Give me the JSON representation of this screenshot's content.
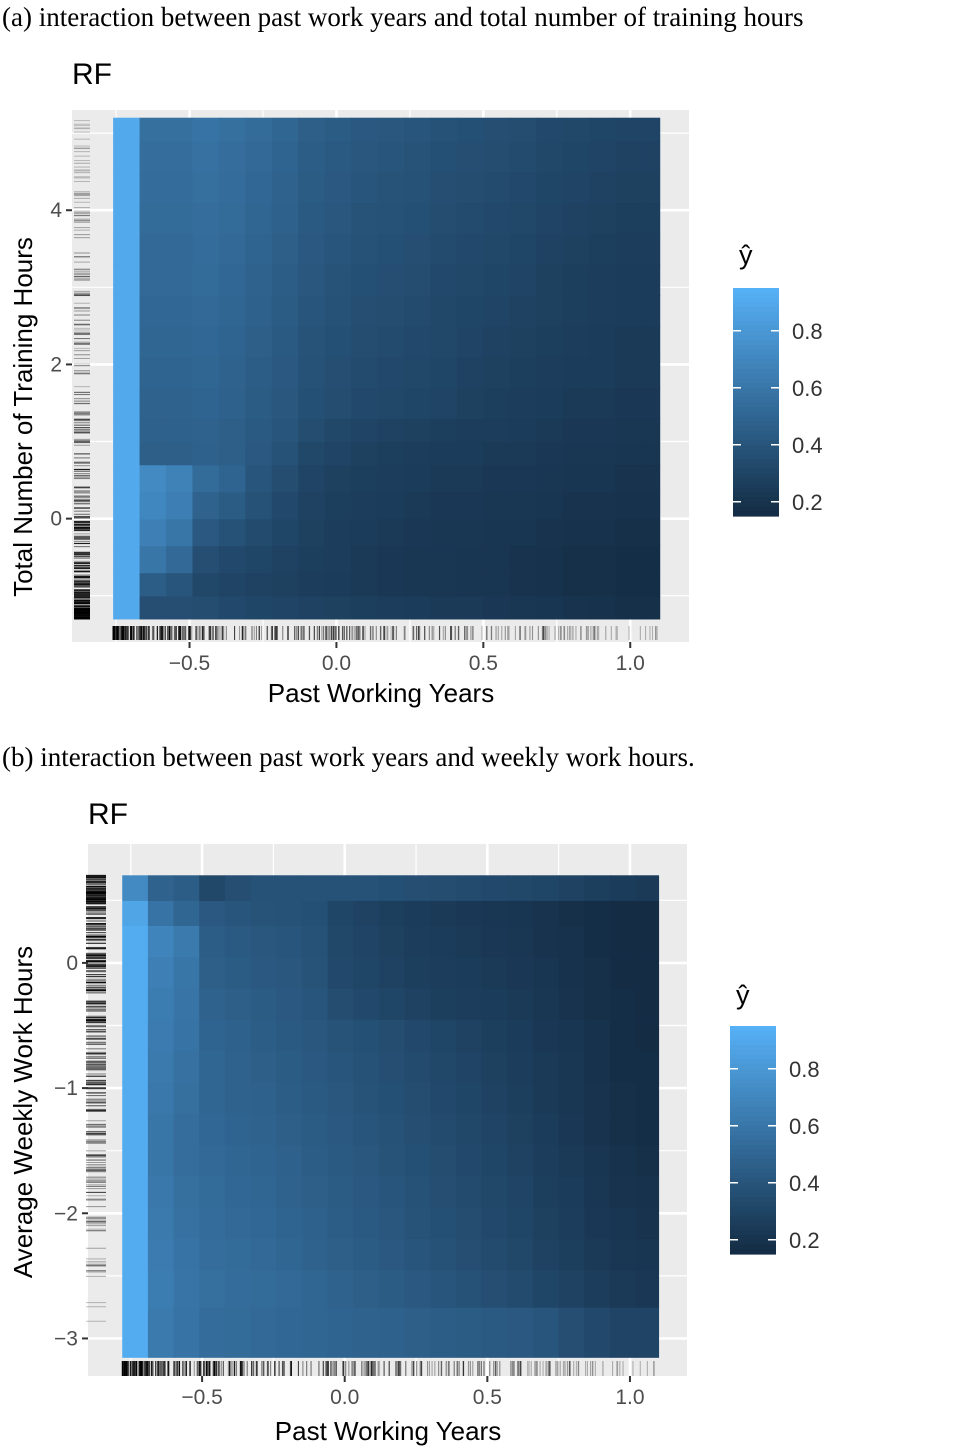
{
  "captions": {
    "a": "(a) interaction between past work years and total number of training hours",
    "b": "(b) interaction between past work years and weekly work hours."
  },
  "colors": {
    "low": "#132B43",
    "high": "#56B1F7",
    "panel": "#EBEBEB",
    "grid": "#FFFFFF"
  },
  "chart_data": [
    {
      "type": "heatmap",
      "title": "RF",
      "xlabel": "Past Working Years",
      "ylabel": "Total Number of Training Hours",
      "legend_title": "ŷ",
      "legend_position": "right",
      "legend_ticks": [
        0.2,
        0.4,
        0.6,
        0.8
      ],
      "zlim": [
        0.15,
        0.95
      ],
      "xlim": [
        -0.9,
        1.2
      ],
      "ylim": [
        -1.6,
        5.3
      ],
      "xticks": [
        -0.5,
        0.0,
        0.5,
        1.0
      ],
      "xtick_labels": [
        "−0.5",
        "0.0",
        "0.5",
        "1.0"
      ],
      "yticks": [
        0,
        2,
        4
      ],
      "ytick_labels": [
        "0",
        "2",
        "4"
      ],
      "grid": true,
      "x_edges": [
        -0.76,
        -0.67,
        -0.58,
        -0.49,
        -0.4,
        -0.31,
        -0.22,
        -0.13,
        -0.04,
        0.05,
        0.14,
        0.23,
        0.32,
        0.41,
        0.5,
        0.59,
        0.68,
        0.77,
        0.86,
        0.95,
        1.04,
        1.1
      ],
      "y_edges": [
        -1.3,
        -1.0,
        -0.7,
        -0.35,
        0.0,
        0.35,
        0.7,
        1.0,
        1.3,
        1.7,
        2.1,
        2.5,
        2.9,
        3.3,
        3.7,
        4.1,
        4.5,
        4.9,
        5.2
      ],
      "rows": [
        [
          0.9,
          0.36,
          0.36,
          0.35,
          0.33,
          0.31,
          0.3,
          0.29,
          0.28,
          0.27,
          0.26,
          0.25,
          0.24,
          0.24,
          0.23,
          0.22,
          0.21,
          0.2,
          0.19,
          0.18,
          0.18
        ],
        [
          0.9,
          0.45,
          0.4,
          0.32,
          0.3,
          0.29,
          0.28,
          0.26,
          0.25,
          0.24,
          0.23,
          0.22,
          0.22,
          0.21,
          0.21,
          0.2,
          0.19,
          0.18,
          0.18,
          0.17,
          0.17
        ],
        [
          0.9,
          0.6,
          0.52,
          0.36,
          0.33,
          0.31,
          0.29,
          0.27,
          0.26,
          0.24,
          0.23,
          0.22,
          0.22,
          0.21,
          0.21,
          0.2,
          0.19,
          0.18,
          0.18,
          0.17,
          0.17
        ],
        [
          0.9,
          0.66,
          0.6,
          0.42,
          0.38,
          0.34,
          0.31,
          0.28,
          0.26,
          0.25,
          0.24,
          0.23,
          0.22,
          0.22,
          0.21,
          0.21,
          0.2,
          0.19,
          0.19,
          0.18,
          0.18
        ],
        [
          0.9,
          0.7,
          0.65,
          0.48,
          0.44,
          0.38,
          0.33,
          0.29,
          0.27,
          0.26,
          0.25,
          0.24,
          0.23,
          0.23,
          0.22,
          0.22,
          0.21,
          0.2,
          0.2,
          0.19,
          0.19
        ],
        [
          0.9,
          0.72,
          0.67,
          0.53,
          0.49,
          0.4,
          0.35,
          0.3,
          0.28,
          0.27,
          0.26,
          0.25,
          0.24,
          0.24,
          0.23,
          0.23,
          0.22,
          0.21,
          0.21,
          0.2,
          0.2
        ],
        [
          0.9,
          0.46,
          0.46,
          0.47,
          0.46,
          0.42,
          0.38,
          0.32,
          0.3,
          0.28,
          0.27,
          0.26,
          0.25,
          0.25,
          0.24,
          0.24,
          0.23,
          0.22,
          0.22,
          0.21,
          0.21
        ],
        [
          0.9,
          0.47,
          0.47,
          0.48,
          0.46,
          0.43,
          0.4,
          0.35,
          0.32,
          0.3,
          0.29,
          0.28,
          0.27,
          0.26,
          0.26,
          0.25,
          0.24,
          0.23,
          0.23,
          0.22,
          0.22
        ],
        [
          0.9,
          0.48,
          0.48,
          0.49,
          0.47,
          0.44,
          0.41,
          0.37,
          0.35,
          0.33,
          0.32,
          0.31,
          0.3,
          0.28,
          0.27,
          0.26,
          0.25,
          0.24,
          0.24,
          0.23,
          0.23
        ],
        [
          0.9,
          0.49,
          0.49,
          0.5,
          0.48,
          0.45,
          0.42,
          0.38,
          0.36,
          0.34,
          0.33,
          0.32,
          0.31,
          0.29,
          0.28,
          0.27,
          0.26,
          0.25,
          0.25,
          0.24,
          0.24
        ],
        [
          0.9,
          0.5,
          0.5,
          0.51,
          0.49,
          0.46,
          0.43,
          0.39,
          0.37,
          0.35,
          0.34,
          0.33,
          0.32,
          0.3,
          0.29,
          0.28,
          0.27,
          0.26,
          0.25,
          0.24,
          0.24
        ],
        [
          0.9,
          0.51,
          0.51,
          0.52,
          0.5,
          0.47,
          0.44,
          0.4,
          0.38,
          0.36,
          0.35,
          0.34,
          0.32,
          0.31,
          0.3,
          0.29,
          0.28,
          0.27,
          0.26,
          0.25,
          0.25
        ],
        [
          0.9,
          0.52,
          0.52,
          0.53,
          0.51,
          0.48,
          0.45,
          0.41,
          0.39,
          0.37,
          0.36,
          0.35,
          0.33,
          0.32,
          0.31,
          0.3,
          0.28,
          0.27,
          0.26,
          0.25,
          0.25
        ],
        [
          0.9,
          0.52,
          0.52,
          0.54,
          0.52,
          0.49,
          0.46,
          0.42,
          0.4,
          0.38,
          0.37,
          0.36,
          0.34,
          0.33,
          0.32,
          0.31,
          0.29,
          0.28,
          0.27,
          0.26,
          0.26
        ],
        [
          0.9,
          0.53,
          0.53,
          0.55,
          0.53,
          0.5,
          0.47,
          0.43,
          0.41,
          0.39,
          0.38,
          0.37,
          0.35,
          0.34,
          0.33,
          0.32,
          0.3,
          0.29,
          0.28,
          0.27,
          0.27
        ],
        [
          0.9,
          0.54,
          0.54,
          0.56,
          0.54,
          0.51,
          0.48,
          0.44,
          0.42,
          0.4,
          0.39,
          0.38,
          0.36,
          0.35,
          0.34,
          0.33,
          0.31,
          0.3,
          0.29,
          0.28,
          0.28
        ],
        [
          0.9,
          0.55,
          0.55,
          0.57,
          0.55,
          0.52,
          0.49,
          0.45,
          0.43,
          0.41,
          0.4,
          0.39,
          0.37,
          0.36,
          0.35,
          0.34,
          0.32,
          0.31,
          0.3,
          0.29,
          0.29
        ],
        [
          0.9,
          0.56,
          0.56,
          0.58,
          0.56,
          0.53,
          0.5,
          0.46,
          0.44,
          0.42,
          0.41,
          0.4,
          0.38,
          0.37,
          0.36,
          0.35,
          0.33,
          0.32,
          0.31,
          0.3,
          0.3
        ]
      ]
    },
    {
      "type": "heatmap",
      "title": "RF",
      "xlabel": "Past Working Years",
      "ylabel": "Average Weekly Work Hours",
      "legend_title": "ŷ",
      "legend_position": "right",
      "legend_ticks": [
        0.2,
        0.4,
        0.6,
        0.8
      ],
      "zlim": [
        0.15,
        0.95
      ],
      "xlim": [
        -0.9,
        1.2
      ],
      "ylim": [
        -3.3,
        0.95
      ],
      "xticks": [
        -0.5,
        0.0,
        0.5,
        1.0
      ],
      "xtick_labels": [
        "−0.5",
        "0.0",
        "0.5",
        "1.0"
      ],
      "yticks": [
        -3,
        -2,
        -1,
        0
      ],
      "ytick_labels": [
        "−3",
        "−2",
        "−1",
        "0"
      ],
      "grid": true,
      "x_edges": [
        -0.78,
        -0.69,
        -0.6,
        -0.51,
        -0.42,
        -0.33,
        -0.24,
        -0.15,
        -0.06,
        0.03,
        0.12,
        0.21,
        0.3,
        0.39,
        0.48,
        0.57,
        0.66,
        0.75,
        0.84,
        0.93,
        1.02,
        1.1
      ],
      "y_edges": [
        -3.15,
        -2.75,
        -2.45,
        -2.2,
        -1.95,
        -1.7,
        -1.45,
        -1.2,
        -0.95,
        -0.7,
        -0.45,
        -0.2,
        0.05,
        0.3,
        0.5,
        0.7
      ],
      "rows": [
        [
          0.92,
          0.62,
          0.58,
          0.54,
          0.53,
          0.52,
          0.51,
          0.5,
          0.49,
          0.48,
          0.47,
          0.46,
          0.45,
          0.44,
          0.43,
          0.42,
          0.4,
          0.36,
          0.33,
          0.3,
          0.3
        ],
        [
          0.92,
          0.64,
          0.59,
          0.56,
          0.54,
          0.53,
          0.52,
          0.5,
          0.48,
          0.46,
          0.44,
          0.42,
          0.4,
          0.38,
          0.36,
          0.34,
          0.31,
          0.29,
          0.26,
          0.24,
          0.23
        ],
        [
          0.92,
          0.63,
          0.58,
          0.55,
          0.53,
          0.52,
          0.5,
          0.48,
          0.46,
          0.44,
          0.42,
          0.4,
          0.38,
          0.36,
          0.34,
          0.32,
          0.29,
          0.27,
          0.24,
          0.22,
          0.21
        ],
        [
          0.92,
          0.62,
          0.57,
          0.54,
          0.52,
          0.51,
          0.49,
          0.47,
          0.45,
          0.43,
          0.41,
          0.39,
          0.37,
          0.35,
          0.33,
          0.31,
          0.28,
          0.26,
          0.23,
          0.21,
          0.2
        ],
        [
          0.92,
          0.61,
          0.56,
          0.53,
          0.51,
          0.5,
          0.48,
          0.46,
          0.44,
          0.42,
          0.4,
          0.38,
          0.36,
          0.34,
          0.32,
          0.3,
          0.27,
          0.25,
          0.22,
          0.2,
          0.19
        ],
        [
          0.92,
          0.6,
          0.55,
          0.52,
          0.5,
          0.49,
          0.47,
          0.45,
          0.43,
          0.41,
          0.39,
          0.37,
          0.35,
          0.33,
          0.31,
          0.29,
          0.26,
          0.24,
          0.21,
          0.19,
          0.18
        ],
        [
          0.92,
          0.6,
          0.55,
          0.51,
          0.49,
          0.48,
          0.46,
          0.44,
          0.42,
          0.4,
          0.38,
          0.36,
          0.34,
          0.32,
          0.3,
          0.28,
          0.25,
          0.23,
          0.2,
          0.18,
          0.17
        ],
        [
          0.92,
          0.61,
          0.56,
          0.5,
          0.48,
          0.47,
          0.45,
          0.43,
          0.41,
          0.39,
          0.37,
          0.35,
          0.33,
          0.31,
          0.29,
          0.27,
          0.24,
          0.22,
          0.2,
          0.18,
          0.17
        ],
        [
          0.92,
          0.62,
          0.57,
          0.5,
          0.48,
          0.46,
          0.44,
          0.42,
          0.4,
          0.38,
          0.36,
          0.34,
          0.32,
          0.3,
          0.28,
          0.26,
          0.24,
          0.22,
          0.19,
          0.17,
          0.17
        ],
        [
          0.92,
          0.63,
          0.58,
          0.49,
          0.47,
          0.45,
          0.43,
          0.41,
          0.39,
          0.37,
          0.35,
          0.33,
          0.31,
          0.29,
          0.27,
          0.25,
          0.23,
          0.21,
          0.19,
          0.17,
          0.16
        ],
        [
          0.92,
          0.64,
          0.59,
          0.48,
          0.46,
          0.44,
          0.42,
          0.4,
          0.35,
          0.33,
          0.31,
          0.29,
          0.27,
          0.26,
          0.25,
          0.24,
          0.22,
          0.2,
          0.18,
          0.17,
          0.16
        ],
        [
          0.92,
          0.66,
          0.6,
          0.46,
          0.44,
          0.42,
          0.41,
          0.39,
          0.33,
          0.31,
          0.29,
          0.27,
          0.26,
          0.25,
          0.24,
          0.23,
          0.21,
          0.19,
          0.18,
          0.16,
          0.16
        ],
        [
          0.92,
          0.68,
          0.62,
          0.45,
          0.43,
          0.41,
          0.4,
          0.38,
          0.32,
          0.3,
          0.28,
          0.26,
          0.25,
          0.24,
          0.23,
          0.22,
          0.2,
          0.19,
          0.17,
          0.16,
          0.16
        ],
        [
          0.88,
          0.58,
          0.5,
          0.42,
          0.4,
          0.39,
          0.38,
          0.37,
          0.31,
          0.29,
          0.27,
          0.25,
          0.24,
          0.23,
          0.22,
          0.21,
          0.2,
          0.18,
          0.17,
          0.16,
          0.16
        ],
        [
          0.72,
          0.48,
          0.45,
          0.32,
          0.36,
          0.38,
          0.38,
          0.38,
          0.38,
          0.38,
          0.37,
          0.36,
          0.35,
          0.34,
          0.33,
          0.32,
          0.31,
          0.29,
          0.27,
          0.25,
          0.24
        ]
      ]
    }
  ]
}
